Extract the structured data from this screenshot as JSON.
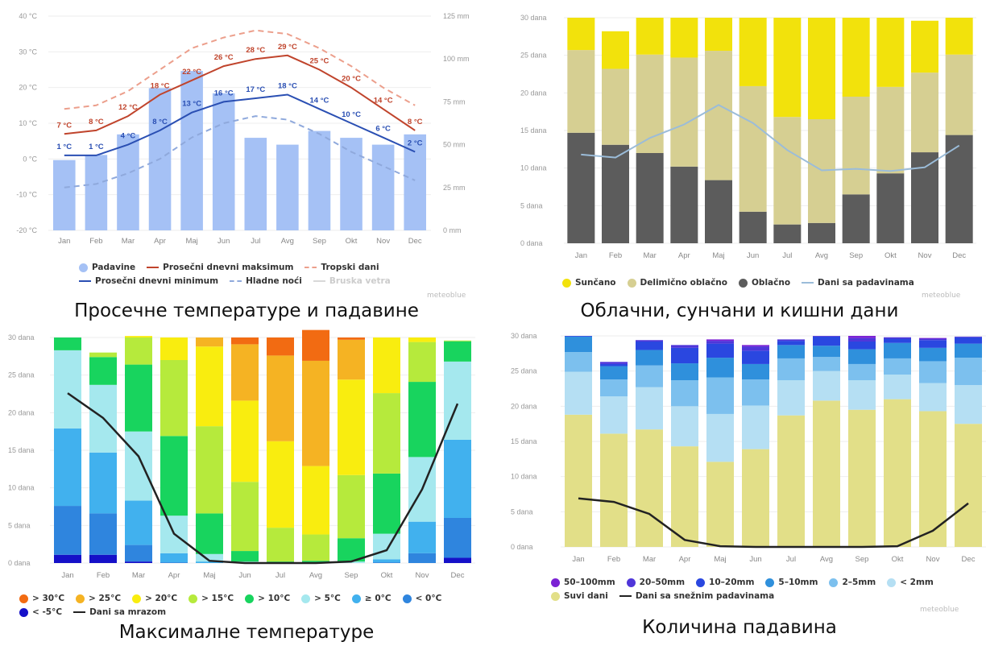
{
  "months": [
    "Jan",
    "Feb",
    "Mar",
    "Apr",
    "Maj",
    "Jun",
    "Jul",
    "Avg",
    "Sep",
    "Okt",
    "Nov",
    "Dec"
  ],
  "credit": "meteoblue",
  "colors": {
    "precip_bar": "#a5c1f5",
    "max_line": "#c0442c",
    "max_dash": "#ec9f8c",
    "min_line": "#2a4fb3",
    "min_dash": "#8fa9dc",
    "grid": "#eeeeee"
  },
  "charts": {
    "temp": {
      "caption": "Просечне температуре и падавине",
      "left_ticks": [
        "40 °C",
        "30 °C",
        "20 °C",
        "10 °C",
        "0 °C",
        "-10 °C",
        "-20 °C"
      ],
      "right_ticks": [
        "125 mm",
        "100 mm",
        "75 mm",
        "50 mm",
        "25 mm",
        "0 mm"
      ],
      "legend": [
        {
          "label": "Padavine",
          "kind": "dot",
          "color": "#a5c1f5"
        },
        {
          "label": "Prosečni dnevni maksimum",
          "kind": "line",
          "color": "#c0442c"
        },
        {
          "label": "Tropski dani",
          "kind": "dash",
          "color": "#ec9f8c"
        },
        {
          "label": "Prosečni dnevni minimum",
          "kind": "line",
          "color": "#2a4fb3"
        },
        {
          "label": "Hladne noći",
          "kind": "dash",
          "color": "#8fa9dc"
        },
        {
          "label": "Bruska vetra",
          "kind": "line",
          "color": "#d8d8d8",
          "faded": true
        }
      ]
    },
    "cloud": {
      "caption": "Облачни, сунчани и кишни дани",
      "yticks": [
        "30 dana",
        "25 dana",
        "20 dana",
        "15 dana",
        "10 dana",
        "5 dana",
        "0 dana"
      ],
      "legend": [
        {
          "label": "Sunčano",
          "kind": "dot",
          "color": "#f2e20c"
        },
        {
          "label": "Delimično oblačno",
          "kind": "dot",
          "color": "#d6cf92"
        },
        {
          "label": "Oblačno",
          "kind": "dot",
          "color": "#5c5c5c"
        },
        {
          "label": "Dani sa padavinama",
          "kind": "line",
          "color": "#9bbcd9"
        }
      ]
    },
    "maxtemp": {
      "caption": "Максималне температуре",
      "yticks": [
        "30 dana",
        "25 dana",
        "20 dana",
        "15 dana",
        "10 dana",
        "5 dana",
        "0 dana"
      ],
      "legend": [
        {
          "label": "> 30°C",
          "kind": "dot",
          "color": "#f26b12"
        },
        {
          "label": "> 25°C",
          "kind": "dot",
          "color": "#f5b323"
        },
        {
          "label": "> 20°C",
          "kind": "dot",
          "color": "#f9ed0f"
        },
        {
          "label": "> 15°C",
          "kind": "dot",
          "color": "#b6ea3c"
        },
        {
          "label": "> 10°C",
          "kind": "dot",
          "color": "#18d45e"
        },
        {
          "label": "> 5°C",
          "kind": "dot",
          "color": "#a5e8ee"
        },
        {
          "label": "≥ 0°C",
          "kind": "dot",
          "color": "#41b1ee"
        },
        {
          "label": "< 0°C",
          "kind": "dot",
          "color": "#2f85de"
        },
        {
          "label": "< -5°C",
          "kind": "dot",
          "color": "#1510c8"
        },
        {
          "label": "Dani sa mrazom",
          "kind": "line",
          "color": "#222222"
        }
      ]
    },
    "precip": {
      "caption": "Количина падавина",
      "yticks": [
        "30 dana",
        "25 dana",
        "20 dana",
        "15 dana",
        "10 dana",
        "5 dana",
        "0 dana"
      ],
      "legend": [
        {
          "label": "50–100mm",
          "kind": "dot",
          "color": "#7b22d4"
        },
        {
          "label": "20–50mm",
          "kind": "dot",
          "color": "#4f36d9"
        },
        {
          "label": "10–20mm",
          "kind": "dot",
          "color": "#2a47e0"
        },
        {
          "label": "5–10mm",
          "kind": "dot",
          "color": "#2f90dc"
        },
        {
          "label": "2–5mm",
          "kind": "dot",
          "color": "#7cc0ee"
        },
        {
          "label": "< 2mm",
          "kind": "dot",
          "color": "#b5dff3"
        },
        {
          "label": "Suvi dani",
          "kind": "dot",
          "color": "#e2df88"
        },
        {
          "label": "Dani sa snežnim padavinama",
          "kind": "line",
          "color": "#222222"
        }
      ]
    }
  },
  "chart_data": [
    {
      "type": "bar",
      "title": "Просечне температуре и падавине",
      "categories": [
        "Jan",
        "Feb",
        "Mar",
        "Apr",
        "Maj",
        "Jun",
        "Jul",
        "Avg",
        "Sep",
        "Okt",
        "Nov",
        "Dec"
      ],
      "ylim_left": [
        -20,
        40
      ],
      "ylim_right": [
        0,
        125
      ],
      "series": [
        {
          "name": "Padavine",
          "axis": "right",
          "type": "bar",
          "values": [
            41,
            44,
            56,
            83,
            93,
            80,
            54,
            50,
            58,
            54,
            50,
            56
          ]
        },
        {
          "name": "Prosečni dnevni maksimum",
          "axis": "left",
          "type": "line",
          "values": [
            7,
            8,
            12,
            18,
            22,
            26,
            28,
            29,
            25,
            20,
            14,
            8
          ],
          "labels": [
            "7 °C",
            "8 °C",
            "12 °C",
            "18 °C",
            "22 °C",
            "26 °C",
            "28 °C",
            "29 °C",
            "25 °C",
            "20 °C",
            "14 °C",
            "8 °C"
          ]
        },
        {
          "name": "Prosečni dnevni minimum",
          "axis": "left",
          "type": "line",
          "values": [
            1,
            1,
            4,
            8,
            13,
            16,
            17,
            18,
            14,
            10,
            6,
            2
          ],
          "labels": [
            "1 °C",
            "1 °C",
            "4 °C",
            "8 °C",
            "13 °C",
            "16 °C",
            "17 °C",
            "18 °C",
            "14 °C",
            "10 °C",
            "6 °C",
            "2 °C"
          ]
        },
        {
          "name": "Tropski dani",
          "axis": "left",
          "type": "dashed-line",
          "values": [
            14,
            15,
            19,
            25,
            31,
            34,
            36,
            35,
            31,
            26,
            20,
            15
          ]
        },
        {
          "name": "Hladne noći",
          "axis": "left",
          "type": "dashed-line",
          "values": [
            -8,
            -7,
            -4,
            0,
            6,
            10,
            12,
            11,
            7,
            2,
            -2,
            -6
          ]
        }
      ]
    },
    {
      "type": "bar",
      "stacked": true,
      "title": "Облачни, сунчани и кишни дани",
      "categories": [
        "Jan",
        "Feb",
        "Mar",
        "Apr",
        "Maj",
        "Jun",
        "Jul",
        "Avg",
        "Sep",
        "Okt",
        "Nov",
        "Dec"
      ],
      "ylim": [
        0,
        30
      ],
      "series": [
        {
          "name": "Oblačno",
          "values": [
            14.7,
            13.1,
            12.0,
            10.2,
            8.4,
            4.2,
            2.5,
            2.7,
            6.5,
            9.3,
            12.1,
            14.4
          ]
        },
        {
          "name": "Delimično oblačno",
          "values": [
            11.0,
            10.1,
            13.1,
            14.5,
            17.2,
            16.7,
            14.3,
            13.8,
            13.0,
            11.5,
            10.6,
            10.7
          ]
        },
        {
          "name": "Sunčano",
          "values": [
            4.3,
            5.0,
            4.9,
            5.3,
            4.4,
            9.1,
            13.2,
            13.5,
            10.5,
            9.2,
            6.9,
            4.9
          ]
        },
        {
          "name": "Dani sa padavinama",
          "type": "line",
          "values": [
            11.8,
            11.4,
            14.0,
            15.8,
            18.4,
            16.0,
            12.4,
            9.7,
            9.9,
            9.6,
            10.1,
            13.0
          ]
        }
      ]
    },
    {
      "type": "bar",
      "stacked": true,
      "title": "Максималне температуре",
      "categories": [
        "Jan",
        "Feb",
        "Mar",
        "Apr",
        "Maj",
        "Jun",
        "Jul",
        "Avg",
        "Sep",
        "Okt",
        "Nov",
        "Dec"
      ],
      "ylim": [
        0,
        30
      ],
      "series": [
        {
          "name": "< -5°C",
          "values": [
            1.1,
            1.1,
            0.2,
            0,
            0,
            0,
            0,
            0,
            0,
            0,
            0,
            0.7
          ]
        },
        {
          "name": "< 0°C",
          "values": [
            6.5,
            5.5,
            2.2,
            0.1,
            0,
            0,
            0,
            0,
            0,
            0.1,
            1.3,
            5.3
          ]
        },
        {
          "name": "≥ 0°C",
          "values": [
            10.3,
            8.1,
            5.9,
            1.2,
            0.2,
            0,
            0,
            0,
            0,
            0.4,
            4.2,
            10.4
          ]
        },
        {
          "name": "> 5°C",
          "values": [
            10.4,
            9.0,
            9.2,
            5.0,
            1.0,
            0.2,
            0,
            0,
            0.2,
            3.4,
            8.6,
            10.4
          ]
        },
        {
          "name": "> 10°C",
          "values": [
            1.7,
            3.7,
            8.9,
            10.6,
            5.4,
            1.4,
            0.2,
            0.3,
            3.1,
            8.0,
            10.0,
            2.7
          ]
        },
        {
          "name": "> 15°C",
          "values": [
            0,
            0.6,
            3.6,
            10.1,
            11.6,
            9.2,
            4.5,
            3.5,
            8.4,
            10.7,
            5.3,
            0.1
          ]
        },
        {
          "name": "> 20°C",
          "values": [
            0,
            0,
            0.2,
            3.0,
            10.6,
            10.8,
            11.5,
            9.1,
            12.7,
            7.4,
            0.6,
            0
          ]
        },
        {
          "name": "> 25°C",
          "values": [
            0,
            0,
            0,
            0,
            1.2,
            7.5,
            11.4,
            14.0,
            5.3,
            0.0,
            0,
            0
          ]
        },
        {
          "name": "> 30°C",
          "values": [
            0,
            0,
            0,
            0,
            0,
            0.9,
            2.4,
            4.1,
            0.3,
            0,
            0,
            0
          ]
        },
        {
          "name": "Dani sa mrazom",
          "type": "line",
          "values": [
            22.6,
            19.3,
            14.2,
            3.9,
            0.3,
            0,
            0,
            0,
            0.2,
            1.7,
            9.8,
            21.2
          ]
        }
      ]
    },
    {
      "type": "bar",
      "stacked": true,
      "title": "Количина падавина",
      "categories": [
        "Jan",
        "Feb",
        "Mar",
        "Apr",
        "Maj",
        "Jun",
        "Jul",
        "Avg",
        "Sep",
        "Okt",
        "Nov",
        "Dec"
      ],
      "ylim": [
        0,
        30
      ],
      "series": [
        {
          "name": "Suvi dani",
          "values": [
            18.8,
            16.1,
            16.7,
            14.3,
            12.1,
            13.9,
            18.7,
            20.8,
            19.5,
            21.0,
            19.3,
            17.5
          ]
        },
        {
          "name": "< 2mm",
          "values": [
            6.1,
            5.3,
            6.0,
            5.7,
            6.8,
            6.2,
            5.0,
            4.2,
            4.2,
            3.5,
            4.0,
            5.5
          ]
        },
        {
          "name": "2–5mm",
          "values": [
            2.8,
            2.4,
            3.1,
            3.7,
            5.2,
            3.7,
            3.1,
            2.0,
            2.3,
            2.3,
            3.1,
            3.9
          ]
        },
        {
          "name": "5–10mm",
          "values": [
            2.2,
            1.9,
            2.2,
            2.4,
            2.8,
            2.2,
            1.9,
            1.6,
            2.1,
            2.2,
            1.9,
            2.0
          ]
        },
        {
          "name": "10–20mm",
          "values": [
            0.1,
            0.3,
            1.2,
            2.2,
            2.0,
            1.9,
            0.6,
            1.3,
            1.1,
            0.6,
            1.1,
            0.9
          ]
        },
        {
          "name": "20–50mm",
          "values": [
            0,
            0.3,
            0.2,
            0.4,
            0.4,
            0.6,
            0.2,
            0.1,
            0.5,
            0.2,
            0.2,
            0.1
          ]
        },
        {
          "name": "50–100mm",
          "values": [
            0,
            0,
            0,
            0,
            0.2,
            0.2,
            0,
            0,
            0.3,
            0,
            0.1,
            0
          ]
        },
        {
          "name": "Dani sa snežnim padavinama",
          "type": "line",
          "values": [
            6.9,
            6.4,
            4.7,
            1.0,
            0.1,
            0,
            0,
            0,
            0,
            0.1,
            2.3,
            6.2
          ]
        }
      ]
    }
  ]
}
